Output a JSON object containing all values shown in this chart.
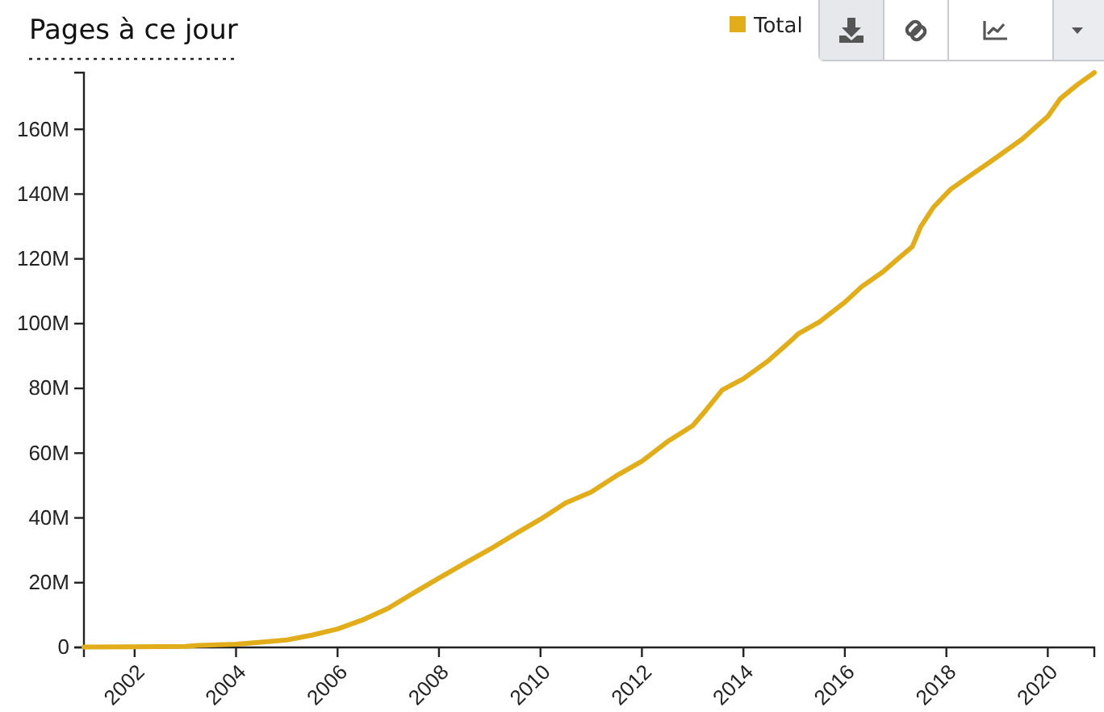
{
  "chart_data": {
    "type": "line",
    "title": "Pages à ce jour",
    "legend": "top right",
    "xlim": [
      "2001-01-01",
      "2020-12-01"
    ],
    "xticks": [
      "2002",
      "2004",
      "2006",
      "2008",
      "2010",
      "2012",
      "2014",
      "2016",
      "2018",
      "2020"
    ],
    "ylim": [
      0,
      177500000
    ],
    "yticks": [
      0,
      {
        "value": 20000000,
        "label": "20M"
      },
      {
        "value": 40000000,
        "label": "40M"
      },
      {
        "value": 60000000,
        "label": "60M"
      },
      {
        "value": 80000000,
        "label": "80M"
      },
      {
        "value": 100000000,
        "label": "100M"
      },
      {
        "value": 120000000,
        "label": "120M"
      },
      {
        "value": 140000000,
        "label": "140M"
      },
      {
        "value": 160000000,
        "label": "160M"
      }
    ],
    "x": [
      "2001-01-01",
      "2002-01-01",
      "2003-01-01",
      "2003-04-01",
      "2004-01-01",
      "2004-07-01",
      "2005-01-01",
      "2005-07-01",
      "2006-01-01",
      "2006-07-01",
      "2007-01-01",
      "2007-07-01",
      "2008-01-01",
      "2008-07-01",
      "2009-01-01",
      "2009-07-01",
      "2010-01-01",
      "2010-07-01",
      "2011-01-01",
      "2011-07-01",
      "2012-01-01",
      "2012-07-01",
      "2013-01-01",
      "2013-04-01",
      "2013-08-01",
      "2014-01-01",
      "2014-07-01",
      "2014-12-01",
      "2015-02-01",
      "2015-07-01",
      "2016-01-01",
      "2016-05-01",
      "2016-10-01",
      "2017-01-01",
      "2017-05-01",
      "2017-07-01",
      "2017-10-01",
      "2018-02-01",
      "2018-07-01",
      "2018-12-01",
      "2019-07-01",
      "2020-01-01",
      "2020-04-01",
      "2020-08-01",
      "2020-12-01"
    ],
    "series": [
      {
        "name": "Total",
        "color": "#e1ad1b",
        "values": [
          100000,
          200000,
          300000,
          600000,
          1000000,
          1600000,
          2300000,
          3800000,
          5700000,
          8500000,
          12100000,
          16800000,
          21400000,
          25900000,
          30300000,
          35000000,
          39600000,
          44600000,
          48000000,
          53000000,
          57500000,
          63500000,
          68500000,
          73000000,
          79500000,
          83000000,
          88600000,
          94400000,
          96900000,
          100500000,
          106600000,
          111400000,
          116000000,
          119400000,
          123800000,
          130000000,
          136000000,
          141500000,
          146000000,
          150500000,
          157000000,
          164000000,
          169500000,
          173800000,
          177500000
        ]
      }
    ]
  }
}
